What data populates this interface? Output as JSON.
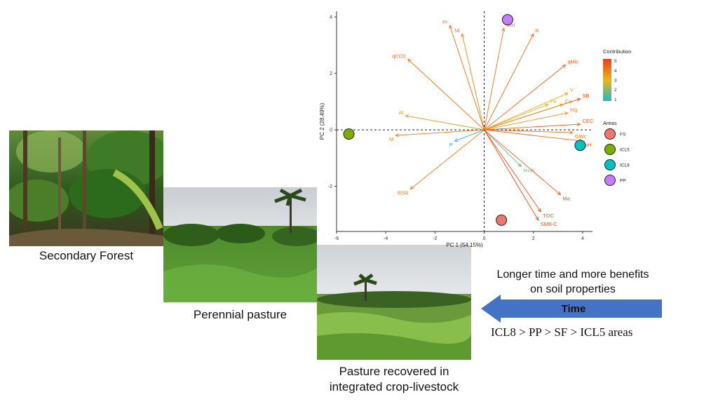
{
  "photos": {
    "secondary_forest": {
      "caption": "Secondary Forest"
    },
    "perennial_pasture": {
      "caption": "Perennial pasture"
    },
    "icl_pasture": {
      "caption_line1": "Pasture recovered in",
      "caption_line2": "integrated crop-livestock"
    }
  },
  "timeline": {
    "benefit_line1": "Longer time and more benefits",
    "benefit_line2": "on soil properties",
    "arrow_label": "Time",
    "ranking": "ICL8 > PP > SF > ICL5 areas",
    "arrow_color": "#4472c4"
  },
  "chart_data": {
    "type": "scatter",
    "xlabel": "PC 1 (54.15%)",
    "ylabel": "PC 2 (28.49%)",
    "xlim": [
      -6,
      4.4
    ],
    "ylim": [
      -3.6,
      4.2
    ],
    "xticks": [
      "-6",
      "-4",
      "-2",
      "0",
      "2",
      "4"
    ],
    "yticks": [
      "-2",
      "0",
      "2",
      "4"
    ],
    "xtick_values": [
      -6,
      -4,
      -2,
      0,
      2,
      4
    ],
    "ytick_values": [
      -2,
      0,
      2,
      4
    ],
    "points": [
      {
        "area": "FS",
        "x": 0.7,
        "y": -3.2
      },
      {
        "area": "ICL5",
        "x": -5.5,
        "y": -0.15
      },
      {
        "area": "ICL8",
        "x": 3.9,
        "y": -0.55
      },
      {
        "area": "PP",
        "x": 0.95,
        "y": 3.9
      }
    ],
    "vectors": [
      {
        "label": "Pr",
        "x": -1.4,
        "y": 3.7,
        "contribution": 4.3
      },
      {
        "label": "Mi",
        "x": -0.9,
        "y": 3.4,
        "contribution": 4.0
      },
      {
        "label": "Soil",
        "x": 0.8,
        "y": 3.6,
        "contribution": 4.2
      },
      {
        "label": "K",
        "x": 2.0,
        "y": 3.4,
        "contribution": 4.4
      },
      {
        "label": "qMic",
        "x": 3.3,
        "y": 2.3,
        "contribution": 4.5
      },
      {
        "label": "qCO2",
        "x": -3.1,
        "y": 2.5,
        "contribution": 4.3
      },
      {
        "label": "V",
        "x": 3.4,
        "y": 1.3,
        "contribution": 3.5
      },
      {
        "label": "SB",
        "x": 3.9,
        "y": 1.1,
        "contribution": 4.8
      },
      {
        "label": "Ca",
        "x": 3.2,
        "y": 0.9,
        "contribution": 3.8
      },
      {
        "label": "Fe",
        "x": 2.6,
        "y": 0.9,
        "contribution": 3.0
      },
      {
        "label": "Mg",
        "x": 3.4,
        "y": 0.6,
        "contribution": 3.6
      },
      {
        "label": "CEC",
        "x": 3.9,
        "y": 0.2,
        "contribution": 4.6
      },
      {
        "label": "GWc",
        "x": 3.6,
        "y": -0.1,
        "contribution": 4.2
      },
      {
        "label": "pH",
        "x": 4.0,
        "y": -0.4,
        "contribution": 4.4
      },
      {
        "label": "Al",
        "x": -3.2,
        "y": 0.5,
        "contribution": 3.6
      },
      {
        "label": "M",
        "x": -3.6,
        "y": -0.2,
        "contribution": 4.0
      },
      {
        "label": "P",
        "x": -1.2,
        "y": -0.4,
        "contribution": 1.0
      },
      {
        "label": "H+Al",
        "x": 1.5,
        "y": -1.3,
        "contribution": 1.6
      },
      {
        "label": "Ma",
        "x": 3.1,
        "y": -2.3,
        "contribution": 4.7
      },
      {
        "label": "BSR",
        "x": -3.0,
        "y": -2.1,
        "contribution": 4.1
      },
      {
        "label": "TOC",
        "x": 2.3,
        "y": -2.9,
        "contribution": 4.8
      },
      {
        "label": "SMB-C",
        "x": 2.2,
        "y": -3.2,
        "contribution": 5.0
      }
    ],
    "legend": {
      "contribution_title": "Contribution",
      "contribution_ticks": [
        "5",
        "4",
        "3",
        "2",
        "1"
      ],
      "contribution_tick_values": [
        5,
        4,
        3,
        2,
        1
      ],
      "areas_title": "Areas",
      "areas": [
        {
          "name": "FS",
          "color": "#f0766d"
        },
        {
          "name": "ICL5",
          "color": "#7cae00"
        },
        {
          "name": "ICL8",
          "color": "#00bfc4"
        },
        {
          "name": "PP",
          "color": "#c77cff"
        }
      ],
      "placement": "right"
    },
    "colors": {
      "low": "#29b6c6",
      "mid": "#e5b51c",
      "high": "#ee3b1d"
    },
    "grid": false
  }
}
